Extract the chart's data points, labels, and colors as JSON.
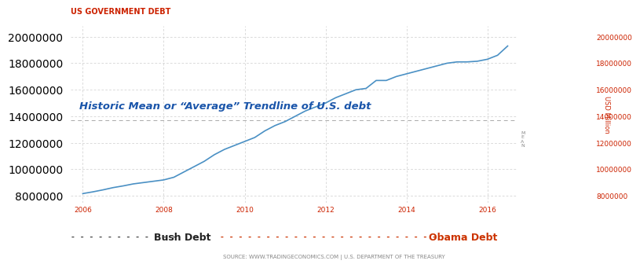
{
  "title": "US GOVERNMENT DEBT",
  "title_color": "#cc2200",
  "title_fontsize": 7,
  "ylabel": "USD Million",
  "ylabel_color": "#cc2200",
  "ylabel_fontsize": 6,
  "ylim": [
    7500000,
    20800000
  ],
  "yticks": [
    8000000,
    10000000,
    12000000,
    14000000,
    16000000,
    18000000,
    20000000
  ],
  "xlim_start": 2005.7,
  "xlim_end": 2016.75,
  "xticks": [
    2006,
    2008,
    2010,
    2012,
    2014,
    2016
  ],
  "mean_line_value": 13700000,
  "mean_label": "Historic Mean or “Average” Trendline of U.S. debt",
  "mean_label_color": "#1a55aa",
  "mean_label_fontsize": 9.5,
  "annotation_mean": "M\nE\nA\nN",
  "source_text": "SOURCE: WWW.TRADINGECONOMICS.COM | U.S. DEPARTMENT OF THE TREASURY",
  "source_color": "#888888",
  "source_fontsize": 5,
  "bush_label": "Bush Debt",
  "obama_label": "Obama Debt",
  "legend_label_color_bush": "#222222",
  "legend_label_color_obama": "#cc3300",
  "legend_fontsize": 9,
  "line_color": "#4a90c4",
  "line_width": 1.2,
  "background_color": "#ffffff",
  "grid_color": "#cccccc",
  "tick_color": "#cc2200",
  "tick_fontsize": 6.5,
  "data_years": [
    2006.0,
    2006.25,
    2006.5,
    2006.75,
    2007.0,
    2007.25,
    2007.5,
    2007.75,
    2008.0,
    2008.25,
    2008.5,
    2008.75,
    2009.0,
    2009.25,
    2009.5,
    2009.75,
    2010.0,
    2010.25,
    2010.5,
    2010.75,
    2011.0,
    2011.25,
    2011.5,
    2011.75,
    2012.0,
    2012.25,
    2012.5,
    2012.75,
    2013.0,
    2013.25,
    2013.5,
    2013.75,
    2014.0,
    2014.25,
    2014.5,
    2014.75,
    2015.0,
    2015.25,
    2015.5,
    2015.75,
    2016.0,
    2016.25,
    2016.5
  ],
  "data_values": [
    8170000,
    8300000,
    8450000,
    8620000,
    8750000,
    8900000,
    9000000,
    9100000,
    9200000,
    9400000,
    9800000,
    10200000,
    10600000,
    11100000,
    11500000,
    11800000,
    12100000,
    12400000,
    12900000,
    13300000,
    13600000,
    14000000,
    14400000,
    14700000,
    15000000,
    15400000,
    15700000,
    16000000,
    16100000,
    16700000,
    16700000,
    17000000,
    17200000,
    17400000,
    17600000,
    17800000,
    18000000,
    18100000,
    18100000,
    18150000,
    18300000,
    18600000,
    19300000
  ]
}
